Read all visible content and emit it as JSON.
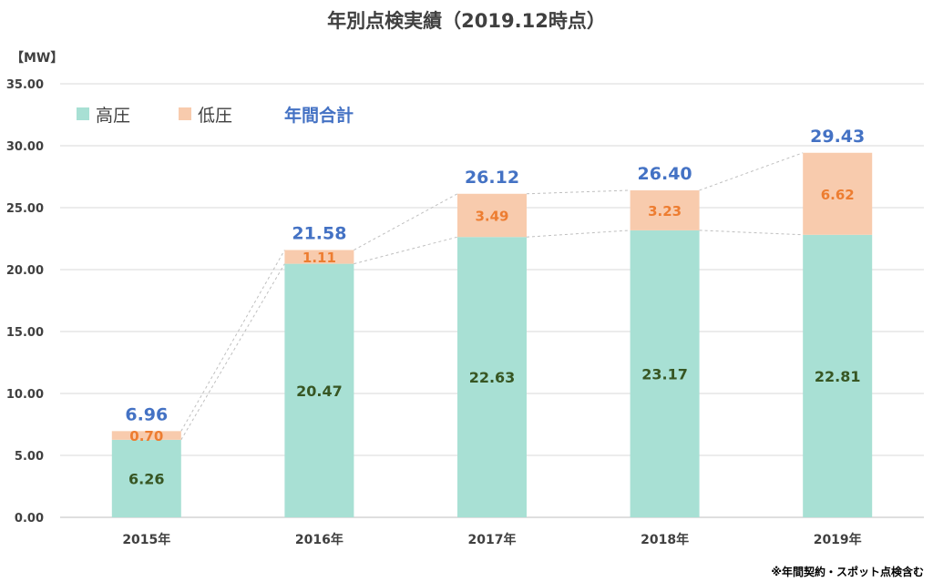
{
  "chart_data": {
    "type": "bar",
    "stacked": true,
    "title": "年別点検実績（2019.12時点）",
    "unit_label": "【MW】",
    "note": "※年間契約・スポット点検含む",
    "categories": [
      "2015年",
      "2016年",
      "2017年",
      "2018年",
      "2019年"
    ],
    "series": [
      {
        "name": "高圧",
        "values": [
          6.26,
          20.47,
          22.63,
          23.17,
          22.81
        ],
        "color": "#A8E0D4",
        "label_color": "#375623"
      },
      {
        "name": "低圧",
        "values": [
          0.7,
          1.11,
          3.49,
          3.23,
          6.62
        ],
        "color": "#F8CBAD",
        "label_color": "#ED7D31"
      }
    ],
    "total": {
      "name": "年間合計",
      "values": [
        6.96,
        21.58,
        26.12,
        26.4,
        29.43
      ],
      "color": "#4472C4"
    },
    "series_labels": [
      [
        "6.26",
        "20.47",
        "22.63",
        "23.17",
        "22.81"
      ],
      [
        "0.70",
        "1.11",
        "3.49",
        "3.23",
        "6.62"
      ]
    ],
    "total_labels": [
      "6.96",
      "21.58",
      "26.12",
      "26.40",
      "29.43"
    ],
    "ylim": [
      0,
      35
    ],
    "yticks": [
      "0.00",
      "5.00",
      "10.00",
      "15.00",
      "20.00",
      "25.00",
      "30.00",
      "35.00"
    ],
    "grid": true,
    "legend_position": "top-left",
    "connector_lines": "dashed"
  }
}
